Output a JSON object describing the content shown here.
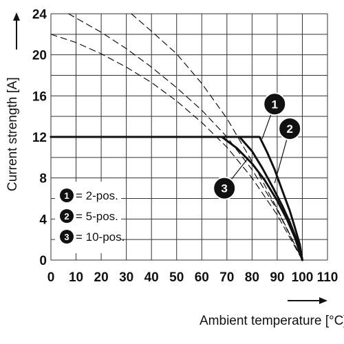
{
  "chart_data": {
    "type": "line",
    "xlabel": "Ambient temperature [°C]",
    "ylabel": "Current strength [A]",
    "xlim": [
      0,
      110
    ],
    "ylim": [
      0,
      24
    ],
    "xticks": [
      0,
      10,
      20,
      30,
      40,
      50,
      60,
      70,
      80,
      90,
      100,
      110
    ],
    "yticks": [
      0,
      4,
      8,
      12,
      16,
      20,
      24
    ],
    "grid": true,
    "legend_position": "bottom-left",
    "series": [
      {
        "marker": "1",
        "legend": "= 2-pos.",
        "style": "solid",
        "points": [
          [
            0,
            12
          ],
          [
            83,
            12
          ],
          [
            86,
            10.5
          ],
          [
            89,
            8.8
          ],
          [
            92,
            6.8
          ],
          [
            95,
            4.8
          ],
          [
            97,
            3.2
          ],
          [
            99,
            1.5
          ],
          [
            100,
            0
          ]
        ]
      },
      {
        "marker": "2",
        "legend": "= 5-pos.",
        "style": "solid",
        "points": [
          [
            0,
            12
          ],
          [
            75,
            12
          ],
          [
            80,
            10.6
          ],
          [
            84,
            9
          ],
          [
            88,
            7.2
          ],
          [
            92,
            5.3
          ],
          [
            95,
            3.7
          ],
          [
            98,
            1.8
          ],
          [
            100,
            0
          ]
        ]
      },
      {
        "marker": "3",
        "legend": "= 10-pos.",
        "style": "solid",
        "points": [
          [
            0,
            12
          ],
          [
            68,
            12
          ],
          [
            74,
            10.9
          ],
          [
            80,
            9.4
          ],
          [
            85,
            7.8
          ],
          [
            90,
            5.8
          ],
          [
            94,
            3.9
          ],
          [
            97,
            2.2
          ],
          [
            100,
            0
          ]
        ]
      },
      {
        "marker": "1",
        "style": "dashed",
        "points": [
          [
            32,
            24
          ],
          [
            40,
            22.3
          ],
          [
            50,
            20.1
          ],
          [
            60,
            17.2
          ],
          [
            70,
            13.8
          ],
          [
            80,
            9.6
          ],
          [
            90,
            5
          ],
          [
            100,
            0
          ]
        ]
      },
      {
        "marker": "2",
        "style": "dashed",
        "points": [
          [
            7,
            24
          ],
          [
            20,
            22.2
          ],
          [
            30,
            20.6
          ],
          [
            40,
            18.8
          ],
          [
            50,
            16.8
          ],
          [
            60,
            14.6
          ],
          [
            70,
            12
          ],
          [
            80,
            8.8
          ],
          [
            90,
            4.9
          ],
          [
            100,
            0
          ]
        ]
      },
      {
        "marker": "3",
        "style": "dashed",
        "points": [
          [
            0,
            22
          ],
          [
            10,
            21.2
          ],
          [
            20,
            20.1
          ],
          [
            30,
            18.8
          ],
          [
            40,
            17.3
          ],
          [
            50,
            15.5
          ],
          [
            60,
            13.4
          ],
          [
            70,
            11
          ],
          [
            80,
            8
          ],
          [
            90,
            4.4
          ],
          [
            100,
            0
          ]
        ]
      }
    ],
    "callouts": [
      {
        "marker": "1",
        "at": [
          89,
          15.2
        ],
        "points_to": [
          84,
          11.8
        ]
      },
      {
        "marker": "2",
        "at": [
          95,
          12.8
        ],
        "points_to": [
          89,
          7.5
        ]
      },
      {
        "marker": "3",
        "at": [
          69,
          7
        ],
        "points_to": [
          78,
          9.8
        ]
      }
    ]
  }
}
